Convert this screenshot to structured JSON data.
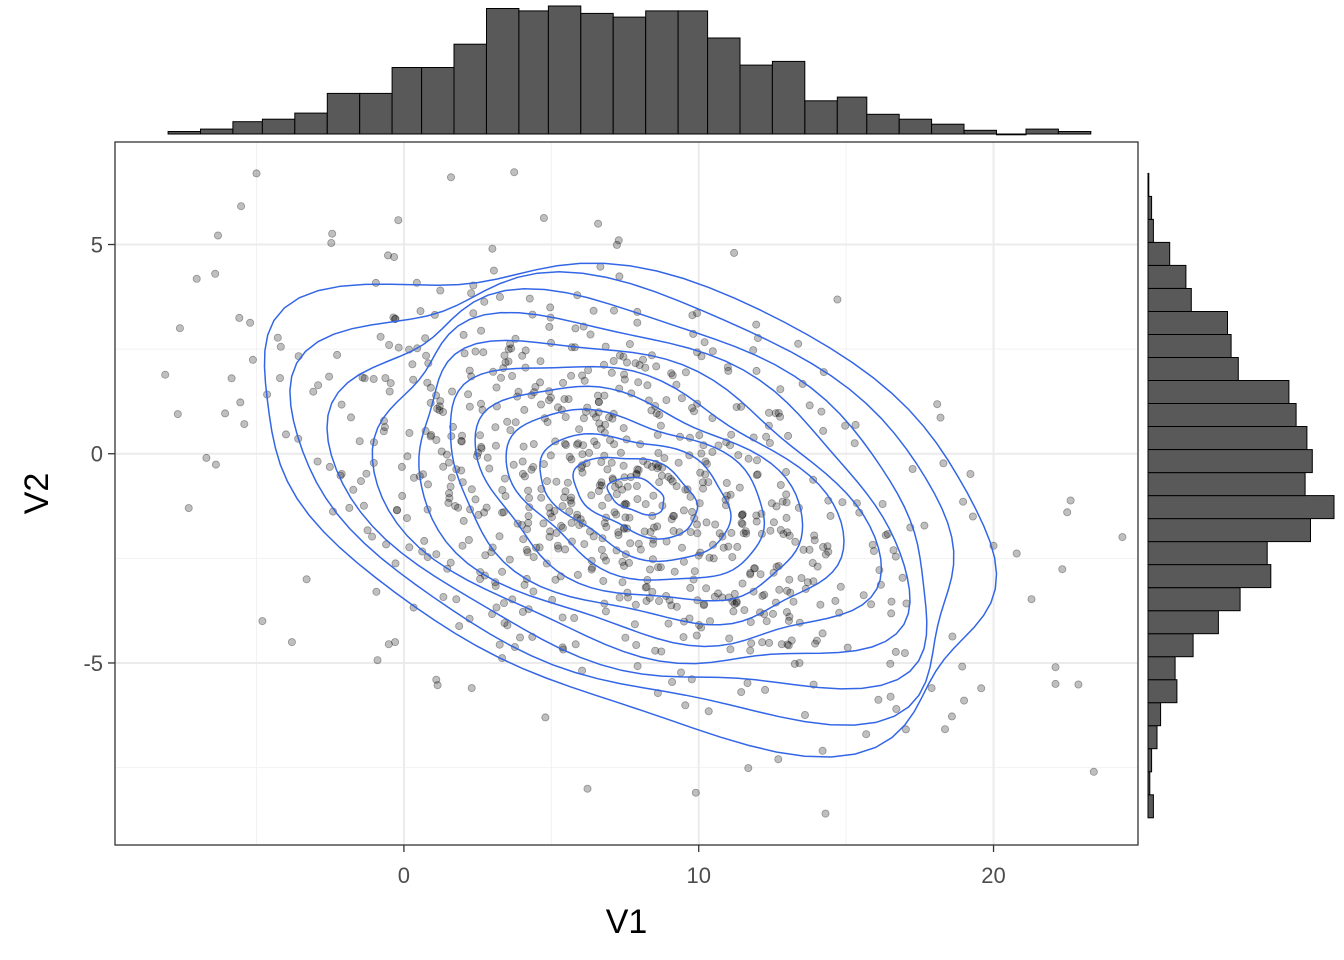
{
  "chart_data": {
    "type": "scatter",
    "title": "",
    "xlabel": "V1",
    "ylabel": "V2",
    "xlim": [
      -9.8,
      24.9
    ],
    "ylim": [
      -9.35,
      7.45
    ],
    "x_ticks": [
      0,
      10,
      20
    ],
    "x_tick_labels": [
      "0",
      "10",
      "20"
    ],
    "y_ticks": [
      -5,
      0,
      5
    ],
    "y_tick_labels": [
      "-5",
      "0",
      "5"
    ],
    "grid": true,
    "legend": "none",
    "point_color": "#000000",
    "point_alpha": 0.25,
    "contour_color": "#3366e6",
    "histogram_fill": "#595959",
    "distribution": {
      "n_points": 800,
      "mean": [
        7.3,
        -0.75
      ],
      "sd": [
        5.3,
        2.45
      ],
      "correlation": -0.38,
      "contour_levels": 11
    },
    "outliers": [
      [
        -5,
        6.7
      ],
      [
        -7.6,
        3.0
      ],
      [
        -6.4,
        4.3
      ],
      [
        -7.3,
        -1.3
      ],
      [
        -6.7,
        -0.1
      ],
      [
        -4.8,
        -4.0
      ],
      [
        -3.8,
        -4.5
      ],
      [
        -3.3,
        -3.0
      ],
      [
        -1.5,
        0.3
      ],
      [
        -0.3,
        -4.5
      ],
      [
        1.1,
        -5.4
      ],
      [
        2.3,
        -5.6
      ],
      [
        3.0,
        4.9
      ],
      [
        11.2,
        4.8
      ],
      [
        4.8,
        -6.3
      ],
      [
        9.9,
        -8.1
      ],
      [
        12.7,
        -7.3
      ],
      [
        14.2,
        -7.1
      ],
      [
        14.3,
        -8.6
      ],
      [
        16.7,
        -6.1
      ],
      [
        17.9,
        -5.6
      ],
      [
        19.0,
        -5.9
      ],
      [
        20.0,
        -2.2
      ],
      [
        22.1,
        -5.1
      ],
      [
        22.1,
        -5.5
      ],
      [
        22.5,
        -1.4
      ],
      [
        23.4,
        -7.6
      ],
      [
        19.3,
        -1.5
      ]
    ],
    "x_histogram": {
      "bin_edges": [
        -8.0,
        -6.9,
        -5.8,
        -4.8,
        -3.7,
        -2.6,
        -1.5,
        -0.4,
        0.6,
        1.7,
        2.8,
        3.9,
        4.9,
        6.0,
        7.1,
        8.2,
        9.3,
        10.3,
        11.4,
        12.5,
        13.6,
        14.7,
        15.7,
        16.8,
        17.9,
        19.0,
        20.1,
        21.1,
        22.2,
        23.3
      ],
      "counts": [
        2,
        4,
        10,
        12,
        17,
        33,
        33,
        54,
        54,
        73,
        102,
        100,
        104,
        98,
        95,
        100,
        100,
        78,
        56,
        59,
        27,
        30,
        16,
        12,
        8,
        3,
        0,
        4,
        2
      ]
    },
    "y_histogram": {
      "bin_edges": [
        -8.7,
        -8.15,
        -7.6,
        -7.05,
        -6.5,
        -5.95,
        -5.4,
        -4.85,
        -4.3,
        -3.75,
        -3.2,
        -2.65,
        -2.1,
        -1.55,
        -1.0,
        -0.45,
        0.1,
        0.65,
        1.2,
        1.75,
        2.3,
        2.85,
        3.4,
        3.95,
        4.5,
        5.05,
        5.6,
        6.15,
        6.7
      ],
      "counts": [
        3,
        1,
        2,
        5,
        7,
        16,
        15,
        25,
        39,
        51,
        68,
        66,
        90,
        103,
        87,
        91,
        88,
        82,
        78,
        50,
        46,
        44,
        24,
        21,
        12,
        3,
        2,
        0
      ]
    }
  }
}
